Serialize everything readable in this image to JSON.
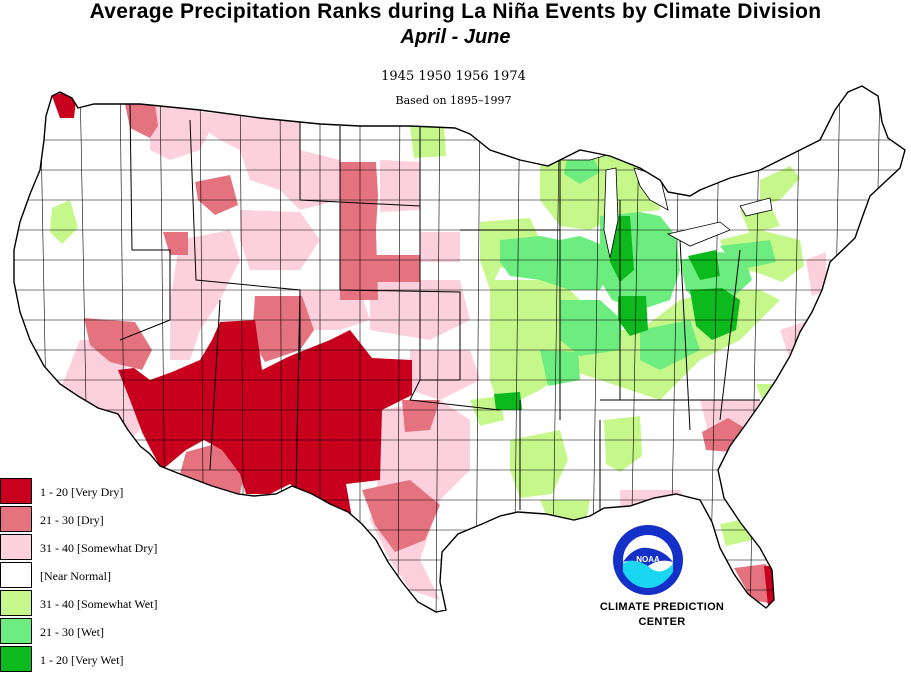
{
  "title": "Average Precipitation Ranks during La  Niña Events by Climate Division",
  "subtitle": "April  -  June",
  "years_line": "1945  1950  1956  1974",
  "basis_line": "Based on 1895–1997",
  "legend": [
    {
      "label": "1 - 20 [Very Dry]",
      "color": "#c8001e"
    },
    {
      "label": "21 - 30 [Dry]",
      "color": "#e5737f"
    },
    {
      "label": "31 - 40 [Somewhat Dry]",
      "color": "#fcd0dc"
    },
    {
      "label": " [Near Normal]",
      "color": "#ffffff"
    },
    {
      "label": "31 - 40 [Somewhat Wet]",
      "color": "#c6f78a"
    },
    {
      "label": "21 - 30 [Wet]",
      "color": "#6ded7f"
    },
    {
      "label": "1 - 20 [Very Wet]",
      "color": "#0cba1e"
    }
  ],
  "credit_line1": "CLIMATE PREDICTION",
  "credit_line2": "CENTER",
  "logo": {
    "icon": "noaa-logo",
    "text": "NOAA",
    "ring_text": "NATIONAL OCEANIC AND ATMOSPHERIC ADMINISTRATION"
  },
  "map": {
    "country": "United States (contiguous)",
    "colors": {
      "very_dry": "#c8001e",
      "dry": "#e5737f",
      "somewhat_dry": "#fcd0dc",
      "near_normal": "#ffffff",
      "somewhat_wet": "#c6f78a",
      "wet": "#6ded7f",
      "very_wet": "#0cba1e"
    }
  }
}
